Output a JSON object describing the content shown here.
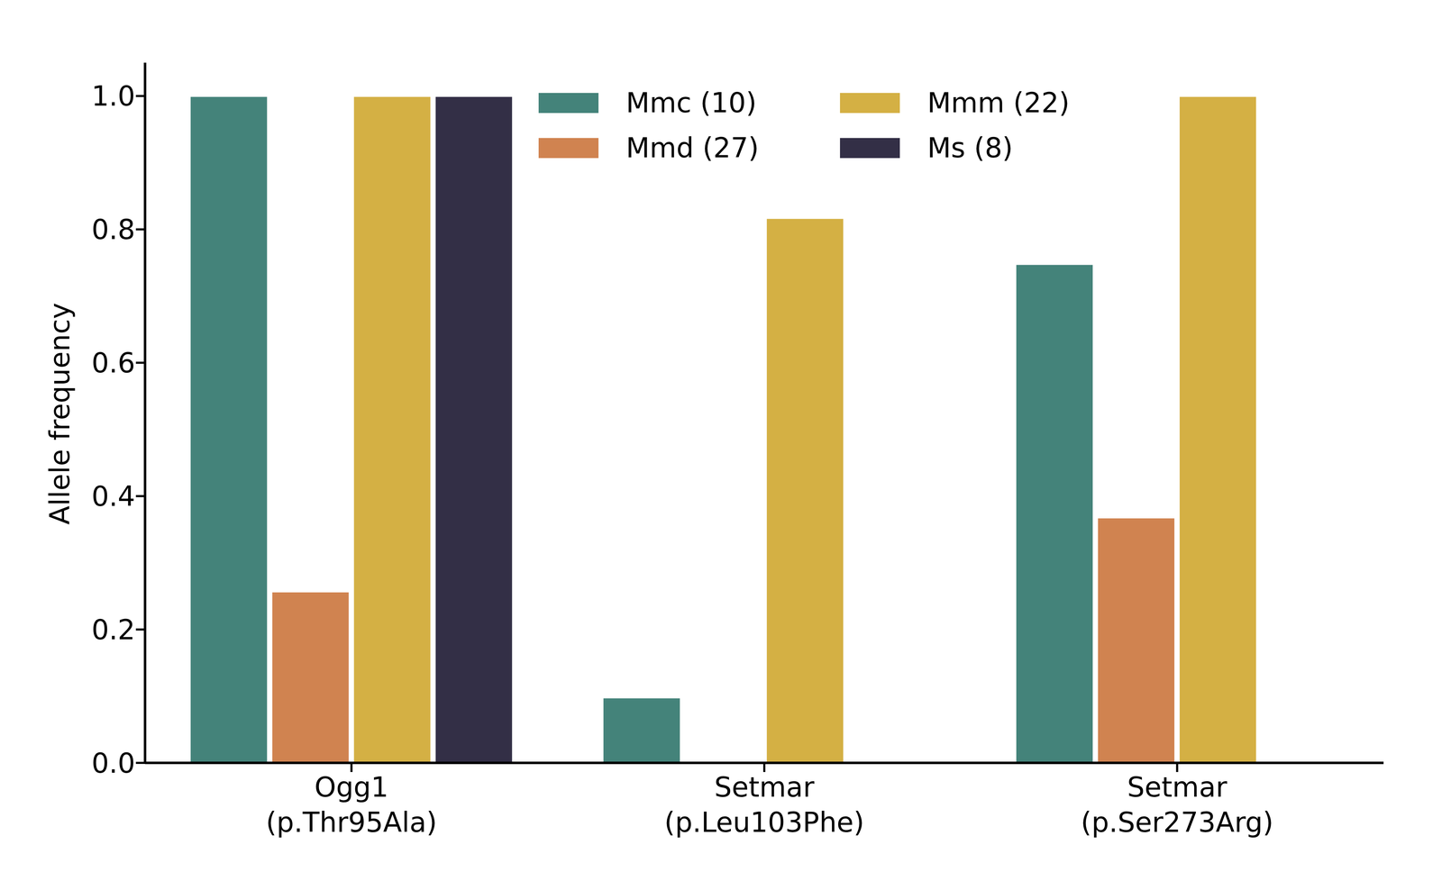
{
  "chart_data": {
    "type": "bar",
    "categories": [
      "Ogg1\n(p.Thr95Ala)",
      "Setmar\n(p.Leu103Phe)",
      "Setmar\n(p.Ser273Arg)"
    ],
    "series": [
      {
        "name": "Mmc (10)",
        "color": "#44837a",
        "values": [
          1.0,
          0.098,
          0.748
        ]
      },
      {
        "name": "Mmd (27)",
        "color": "#d08350",
        "values": [
          0.257,
          0,
          0.368
        ]
      },
      {
        "name": "Mmm (22)",
        "color": "#d4b044",
        "values": [
          1.0,
          0.817,
          1.0
        ]
      },
      {
        "name": "Ms (8)",
        "color": "#332f46",
        "values": [
          1.0,
          0,
          0
        ]
      }
    ],
    "y_label": "Allele frequency",
    "ylim": [
      0,
      1.05
    ],
    "yticks": [
      {
        "value": 0,
        "label": "0.0"
      },
      {
        "value": 0.2,
        "label": "0.2"
      },
      {
        "value": 0.4,
        "label": "0.4"
      },
      {
        "value": 0.6,
        "label": "0.6"
      },
      {
        "value": 0.8,
        "label": "0.8"
      },
      {
        "value": 1,
        "label": "1.0"
      }
    ],
    "legend": "upper center",
    "grid": false
  }
}
